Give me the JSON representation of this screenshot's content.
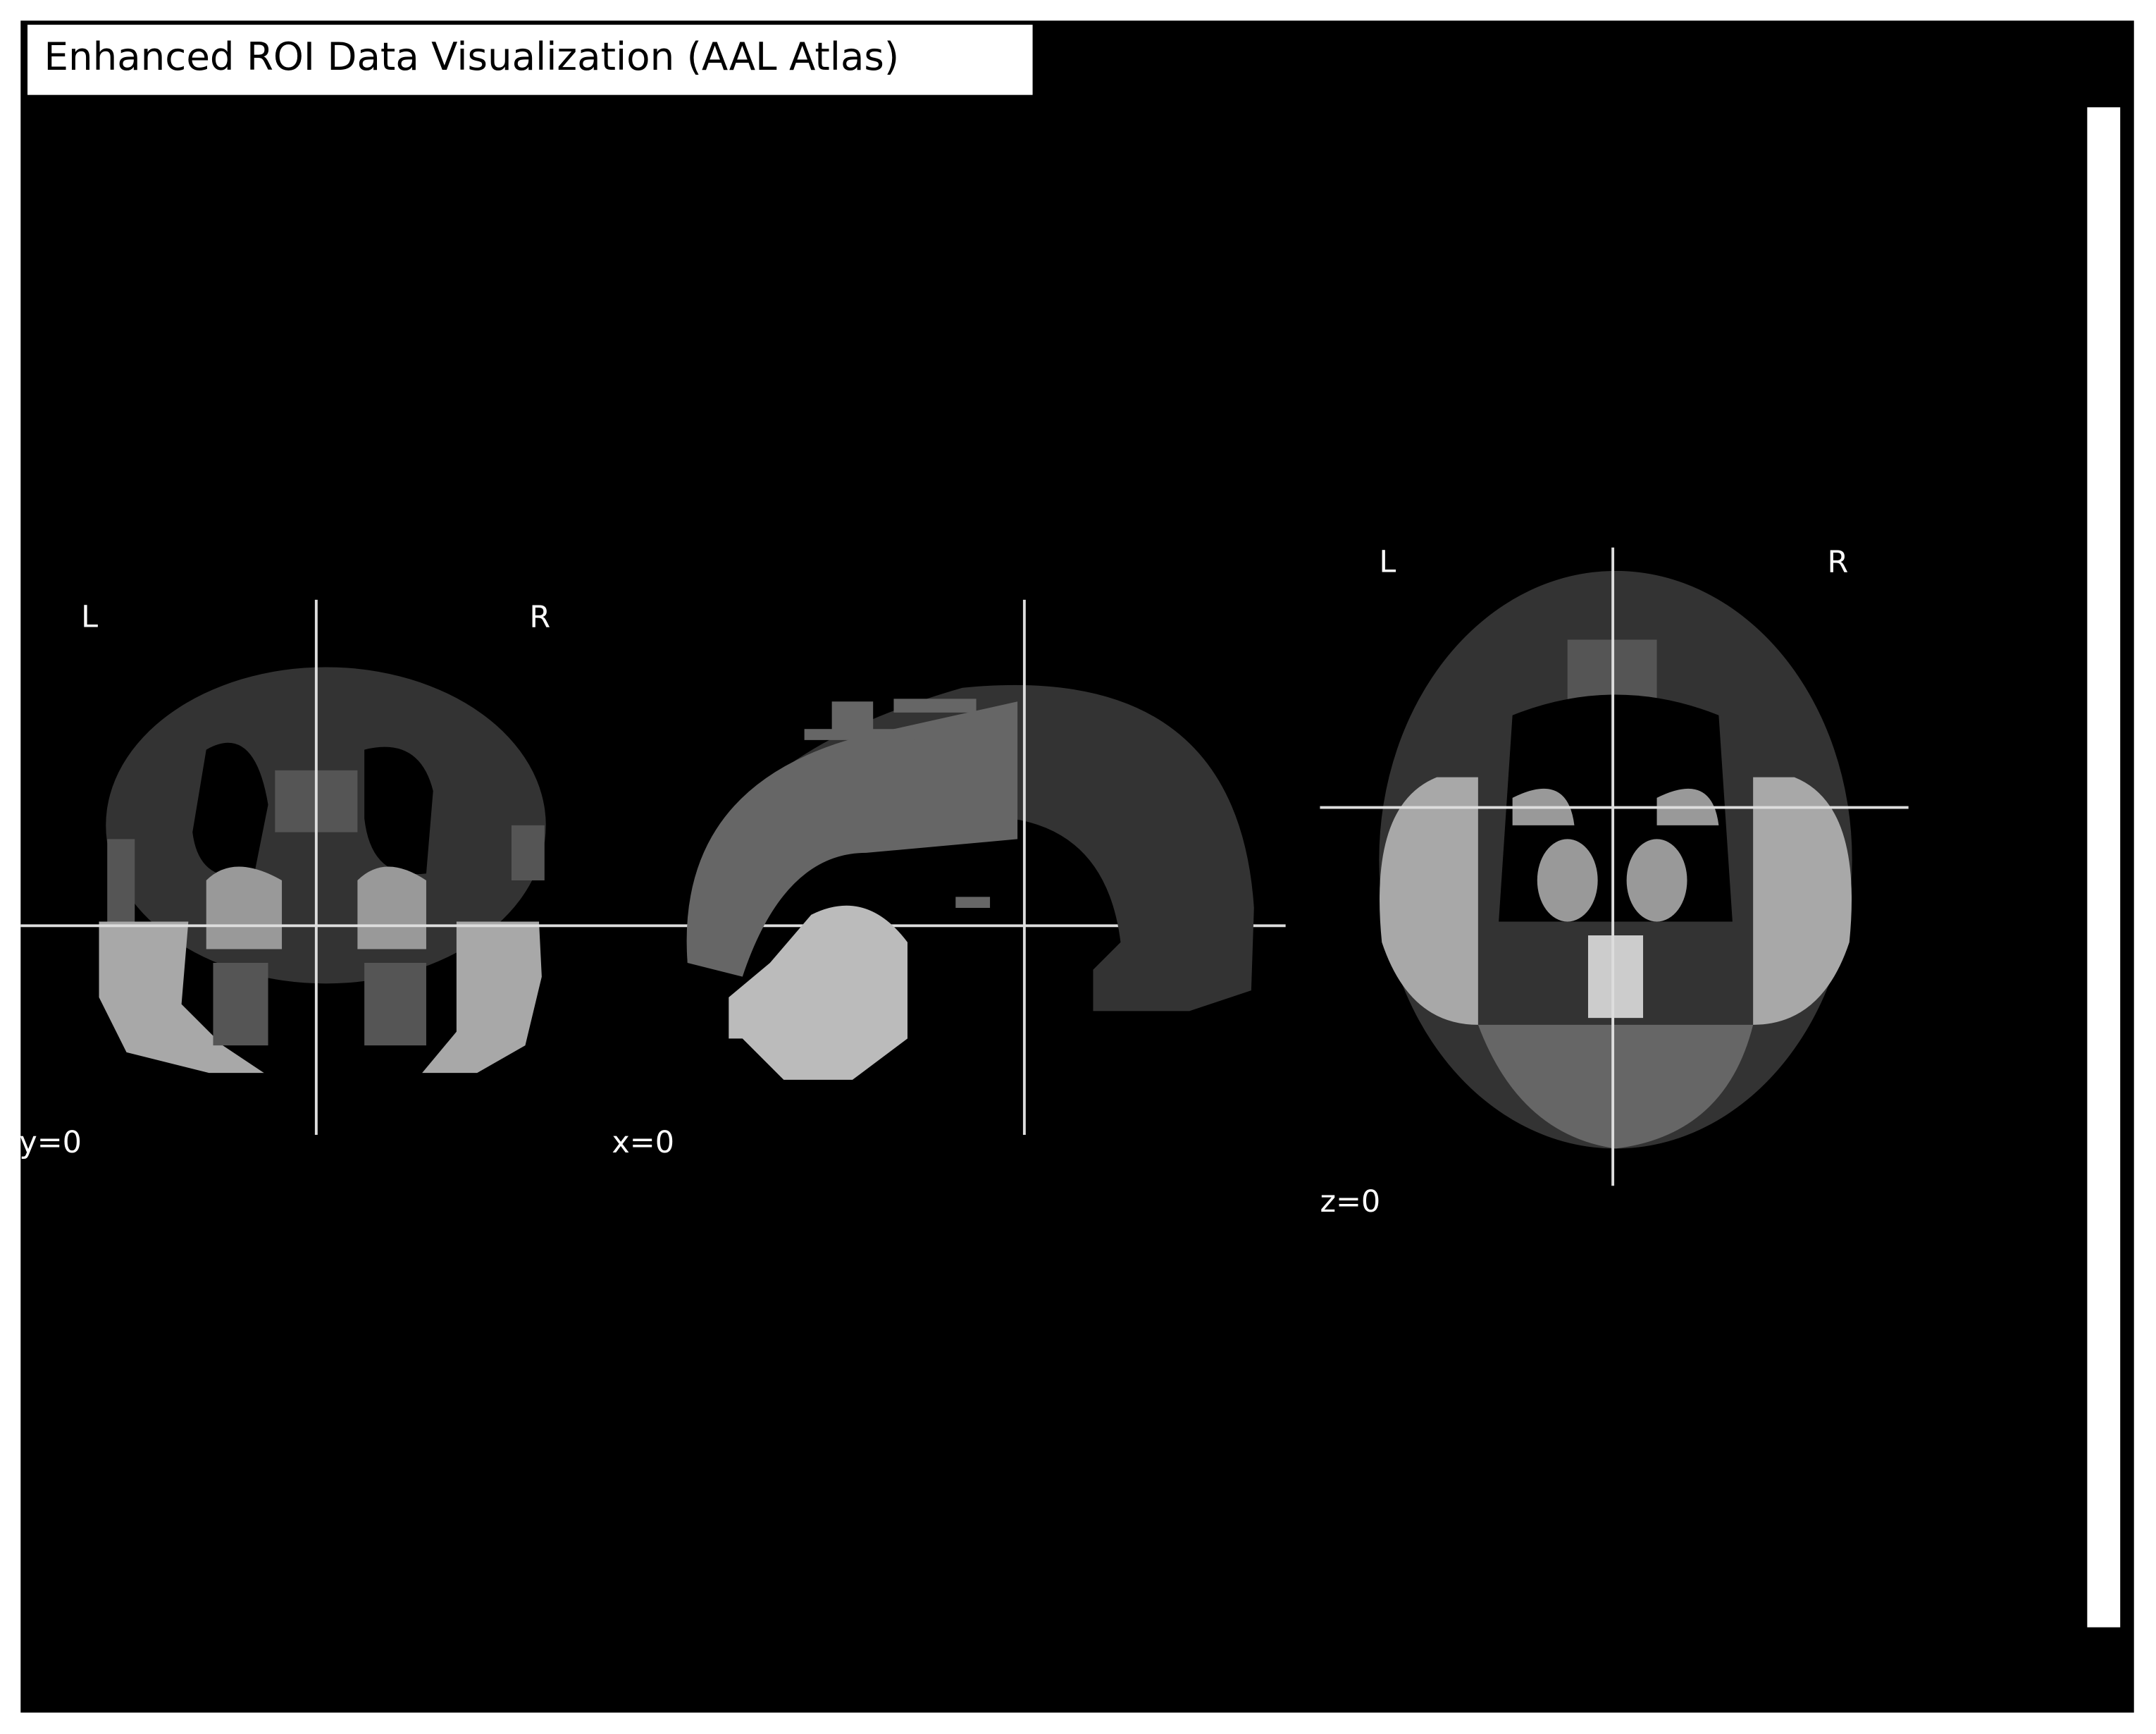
{
  "title": "Enhanced ROI Data Visualization (AAL Atlas)",
  "panels": [
    {
      "label": "y=0",
      "left": "L",
      "right": "R"
    },
    {
      "label": "x=0"
    },
    {
      "label": "z=0",
      "left": "L",
      "right": "R"
    }
  ]
}
